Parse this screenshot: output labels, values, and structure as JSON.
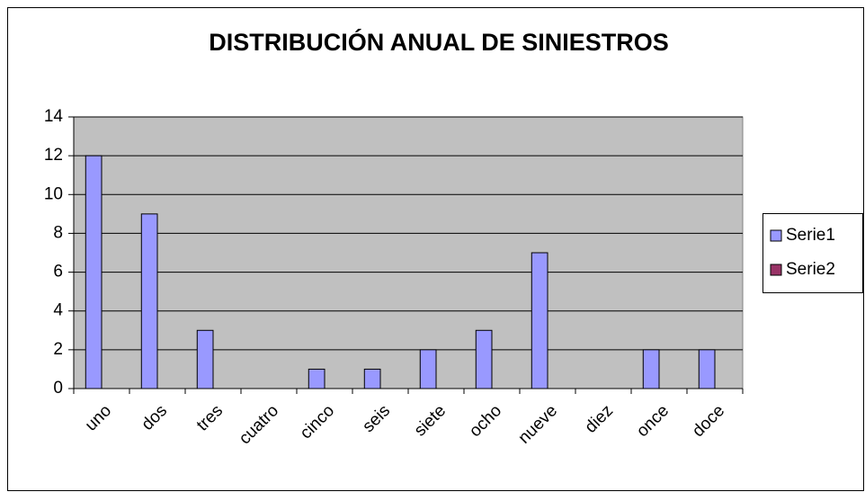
{
  "chart_data": {
    "type": "bar",
    "title": "DISTRIBUCIÓN ANUAL DE SINIESTROS",
    "categories": [
      "uno",
      "dos",
      "tres",
      "cuatro",
      "cinco",
      "seis",
      "siete",
      "ocho",
      "nueve",
      "diez",
      "once",
      "doce"
    ],
    "series": [
      {
        "name": "Serie1",
        "color": "#9999ff",
        "values": [
          12,
          9,
          3,
          0,
          1,
          1,
          2,
          3,
          7,
          0,
          2,
          2
        ]
      },
      {
        "name": "Serie2",
        "color": "#993366",
        "values": [
          null,
          null,
          null,
          null,
          null,
          null,
          null,
          null,
          null,
          null,
          null,
          null
        ]
      }
    ],
    "ylim": [
      0,
      14
    ],
    "yticks": [
      0,
      2,
      4,
      6,
      8,
      10,
      12,
      14
    ],
    "grid": true,
    "legend": "right"
  }
}
